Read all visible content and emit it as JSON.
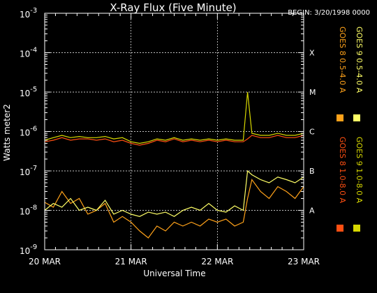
{
  "chart_data": {
    "type": "line",
    "title": "X-Ray Flux (Five Minute)",
    "begin_label": "BEGIN: 3/20/1998 0000",
    "xlabel": "Universal Time",
    "ylabel": "Watts meter2",
    "y_scale": "log",
    "ylim": [
      1e-09,
      0.001
    ],
    "grid": true,
    "x_ticks": [
      "20 MAR",
      "21 MAR",
      "22 MAR",
      "23 MAR"
    ],
    "x_range_days": [
      20,
      23
    ],
    "y_ticks": [
      {
        "base": "10",
        "exp": "-3",
        "value": 0.001
      },
      {
        "base": "10",
        "exp": "-4",
        "value": 0.0001
      },
      {
        "base": "10",
        "exp": "-5",
        "value": 1e-05
      },
      {
        "base": "10",
        "exp": "-6",
        "value": 1e-06
      },
      {
        "base": "10",
        "exp": "-7",
        "value": 1e-07
      },
      {
        "base": "10",
        "exp": "-8",
        "value": 1e-08
      },
      {
        "base": "10",
        "exp": "-9",
        "value": 1e-09
      }
    ],
    "flare_classes": [
      {
        "label": "X",
        "value": 0.0001
      },
      {
        "label": "M",
        "value": 1e-05
      },
      {
        "label": "C",
        "value": 1e-06
      },
      {
        "label": "B",
        "value": 1e-07
      },
      {
        "label": "A",
        "value": 1e-08
      }
    ],
    "series": [
      {
        "name": "GOES 8 0.5-4.0 A",
        "color": "#ffa21a",
        "x": [
          20.0,
          20.1,
          20.2,
          20.3,
          20.4,
          20.5,
          20.6,
          20.7,
          20.8,
          20.9,
          21.0,
          21.1,
          21.2,
          21.3,
          21.4,
          21.5,
          21.6,
          21.7,
          21.8,
          21.9,
          22.0,
          22.1,
          22.2,
          22.3,
          22.35,
          22.4,
          22.5,
          22.6,
          22.7,
          22.8,
          22.9,
          23.0
        ],
        "values": [
          1.6e-08,
          1.2e-08,
          3e-08,
          1.5e-08,
          2e-08,
          8e-09,
          1e-08,
          1.5e-08,
          5e-09,
          7e-09,
          5e-09,
          3e-09,
          2e-09,
          4e-09,
          3e-09,
          5e-09,
          4e-09,
          5e-09,
          4e-09,
          6e-09,
          5e-09,
          6e-09,
          4e-09,
          5e-09,
          2e-08,
          6e-08,
          3e-08,
          2e-08,
          4e-08,
          3e-08,
          2e-08,
          4e-08
        ]
      },
      {
        "name": "GOES 9 0.5-4.0 A",
        "color": "#ffff66",
        "x": [
          20.0,
          20.1,
          20.2,
          20.3,
          20.4,
          20.5,
          20.6,
          20.7,
          20.8,
          20.9,
          21.0,
          21.1,
          21.2,
          21.3,
          21.4,
          21.5,
          21.6,
          21.7,
          21.8,
          21.9,
          22.0,
          22.1,
          22.2,
          22.3,
          22.35,
          22.4,
          22.5,
          22.6,
          22.7,
          22.8,
          22.9,
          23.0
        ],
        "values": [
          1e-08,
          1.5e-08,
          1.2e-08,
          2e-08,
          1e-08,
          1.2e-08,
          1e-08,
          1.8e-08,
          8e-09,
          1e-08,
          8e-09,
          7e-09,
          9e-09,
          8e-09,
          9e-09,
          7e-09,
          1e-08,
          1.2e-08,
          1e-08,
          1.5e-08,
          1e-08,
          9e-09,
          1.3e-08,
          1e-08,
          1e-07,
          8e-08,
          6e-08,
          5e-08,
          7e-08,
          6e-08,
          5e-08,
          7e-08
        ]
      },
      {
        "name": "GOES 8 1.0-8.0 A",
        "color": "#ff4f12",
        "x": [
          20.0,
          20.1,
          20.2,
          20.3,
          20.4,
          20.5,
          20.6,
          20.7,
          20.8,
          20.9,
          21.0,
          21.1,
          21.2,
          21.3,
          21.4,
          21.5,
          21.6,
          21.7,
          21.8,
          21.9,
          22.0,
          22.1,
          22.2,
          22.3,
          22.35,
          22.4,
          22.5,
          22.6,
          22.7,
          22.8,
          22.9,
          23.0
        ],
        "values": [
          5.5e-07,
          6e-07,
          7e-07,
          6e-07,
          6.5e-07,
          6.5e-07,
          6e-07,
          6.5e-07,
          5.5e-07,
          6e-07,
          5e-07,
          4.5e-07,
          5e-07,
          6e-07,
          5.5e-07,
          6.5e-07,
          5.5e-07,
          6e-07,
          5.5e-07,
          6e-07,
          5.5e-07,
          6e-07,
          5.5e-07,
          5.5e-07,
          6.5e-07,
          8e-07,
          7e-07,
          7e-07,
          8e-07,
          7e-07,
          7e-07,
          8e-07
        ]
      },
      {
        "name": "GOES 9 1.0-8.0 A",
        "color": "#d8d800",
        "x": [
          20.0,
          20.1,
          20.2,
          20.3,
          20.4,
          20.5,
          20.6,
          20.7,
          20.8,
          20.9,
          21.0,
          21.1,
          21.2,
          21.3,
          21.4,
          21.5,
          21.6,
          21.7,
          21.8,
          21.9,
          22.0,
          22.1,
          22.2,
          22.3,
          22.35,
          22.4,
          22.5,
          22.6,
          22.7,
          22.8,
          22.9,
          23.0
        ],
        "values": [
          6e-07,
          7e-07,
          8e-07,
          7e-07,
          7.5e-07,
          7e-07,
          7e-07,
          7.5e-07,
          6.5e-07,
          7e-07,
          5.5e-07,
          5e-07,
          5.5e-07,
          6.5e-07,
          6e-07,
          7e-07,
          6e-07,
          6.5e-07,
          6e-07,
          6.5e-07,
          6e-07,
          6.5e-07,
          6e-07,
          6e-07,
          1e-05,
          9e-07,
          8e-07,
          8e-07,
          9e-07,
          8e-07,
          8e-07,
          9e-07
        ]
      }
    ]
  }
}
